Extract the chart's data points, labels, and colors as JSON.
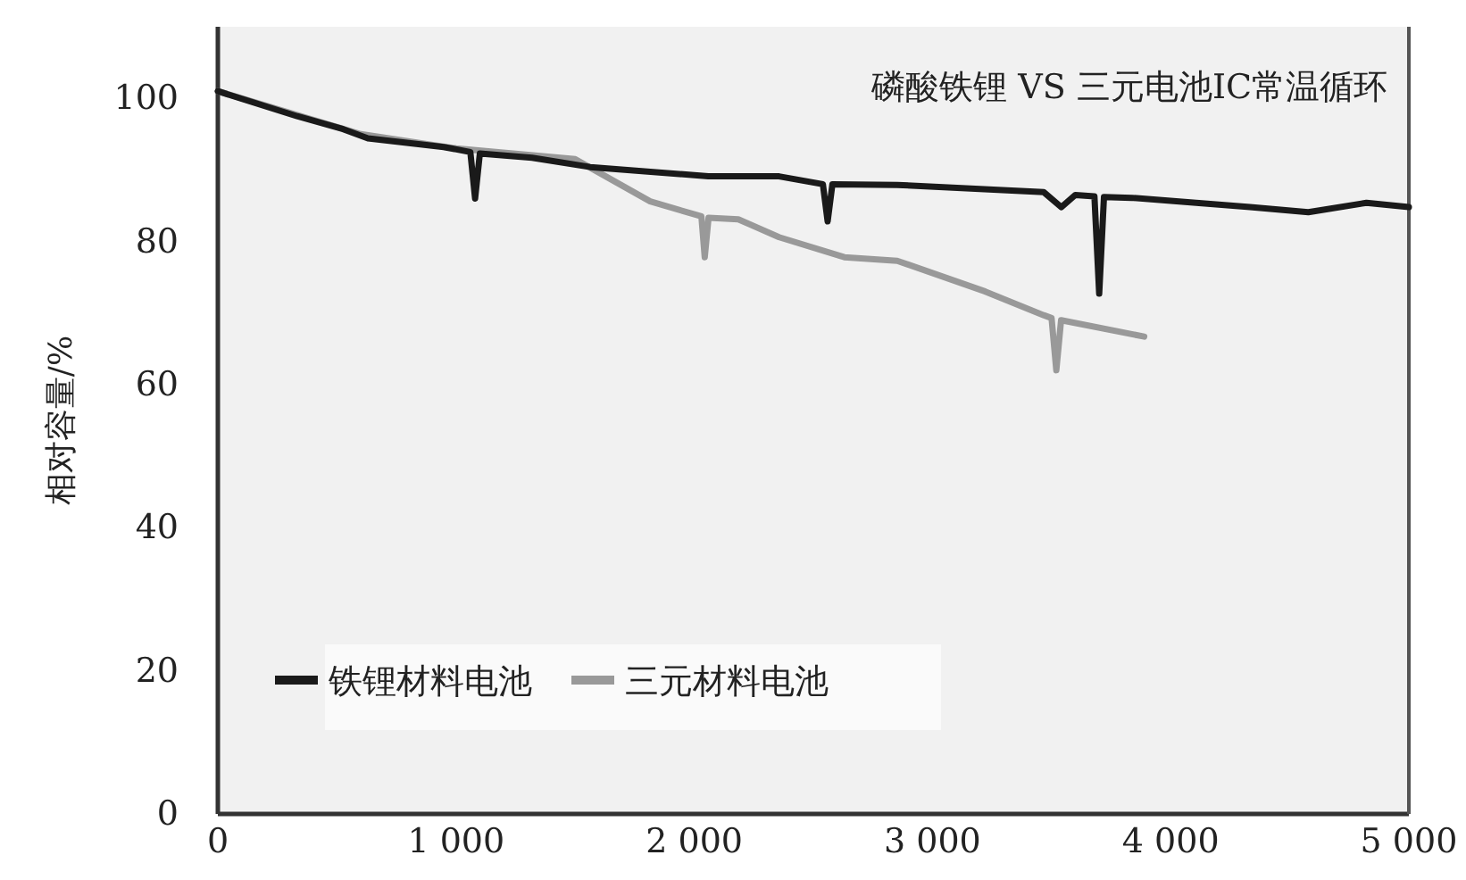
{
  "chart_data": {
    "type": "line",
    "title": "磷酸铁锂 VS 三元电池IC常温循环",
    "ylabel": "相对容量/%",
    "xlim": [
      0,
      5000
    ],
    "xticks": [
      0,
      {
        "value": 1000,
        "label": "1 000"
      },
      {
        "value": 2000,
        "label": "2 000"
      },
      {
        "value": 3000,
        "label": "3 000"
      },
      {
        "value": 4000,
        "label": "4 000"
      },
      {
        "value": 5000,
        "label": "5 000"
      }
    ],
    "ylim": [
      0,
      110
    ],
    "yticks": [
      0,
      20,
      40,
      60,
      80,
      100
    ],
    "grid": false,
    "legend": "bottom left",
    "marker": "none",
    "line_style": "solid",
    "series": [
      {
        "name": "铁锂材料电池",
        "color": "#1a1a1a",
        "x": [
          0,
          333,
          526,
          630,
          948,
          1060,
          1080,
          1100,
          1319,
          1563,
          2059,
          2356,
          2540,
          2560,
          2580,
          2852,
          3467,
          3541,
          3600,
          3680,
          3700,
          3720,
          3837,
          4333,
          4578,
          4822,
          5000
        ],
        "values": [
          101,
          97.5,
          95.7,
          94.4,
          93.2,
          92.5,
          86,
          92.3,
          91.7,
          90.4,
          89.1,
          89.1,
          88,
          82.8,
          88,
          87.9,
          86.9,
          84.8,
          86.5,
          86.3,
          72.7,
          86.2,
          86.1,
          84.8,
          84.1,
          85.4,
          84.8
        ]
      },
      {
        "name": "三元材料电池",
        "color": "#999999",
        "x": [
          0,
          600,
          1000,
          1500,
          1815,
          2030,
          2044,
          2060,
          2185,
          2356,
          2630,
          2852,
          3222,
          3467,
          3500,
          3520,
          3540,
          3889
        ],
        "values": [
          101,
          95,
          93,
          91.5,
          85.6,
          83.5,
          77.8,
          83.3,
          83.1,
          80.6,
          77.8,
          77.3,
          73,
          69.7,
          69.3,
          62,
          69,
          66.7
        ]
      }
    ]
  }
}
